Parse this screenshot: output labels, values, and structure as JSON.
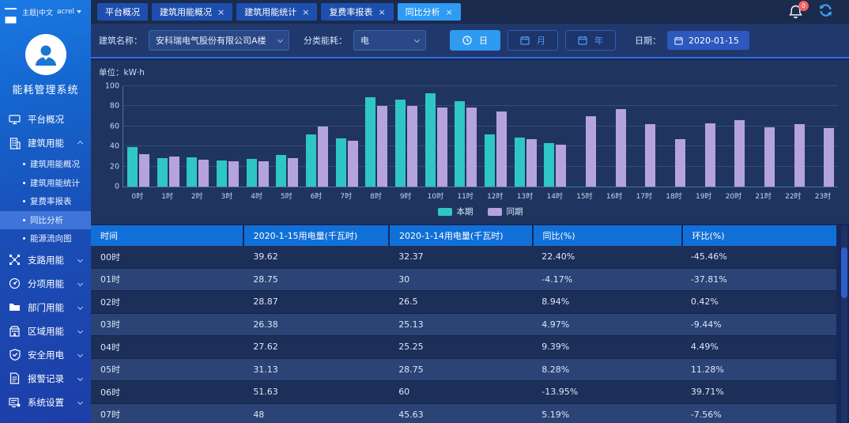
{
  "topbar": {
    "language_label": "主题|中文",
    "user_label": "acrel",
    "tabs": [
      {
        "label": "平台概况",
        "closable": false,
        "active": false
      },
      {
        "label": "建筑用能概况",
        "closable": true,
        "active": false
      },
      {
        "label": "建筑用能统计",
        "closable": true,
        "active": false
      },
      {
        "label": "复费率报表",
        "closable": true,
        "active": false
      },
      {
        "label": "同比分析",
        "closable": true,
        "active": true
      }
    ],
    "notification_badge": "0"
  },
  "sidebar": {
    "app_title": "能耗管理系统",
    "items": [
      {
        "label": "平台概况",
        "icon": "monitor-icon",
        "type": "item"
      },
      {
        "label": "建筑用能",
        "icon": "building-icon",
        "type": "group",
        "expanded": true,
        "children": [
          {
            "label": "建筑用能概况",
            "active": false
          },
          {
            "label": "建筑用能统计",
            "active": false
          },
          {
            "label": "复费率报表",
            "active": false
          },
          {
            "label": "同比分析",
            "active": true
          },
          {
            "label": "能源流向图",
            "active": false
          }
        ]
      },
      {
        "label": "支路用能",
        "icon": "branch-icon",
        "type": "group",
        "expanded": false
      },
      {
        "label": "分项用能",
        "icon": "gauge-icon",
        "type": "group",
        "expanded": false
      },
      {
        "label": "部门用能",
        "icon": "folder-icon",
        "type": "group",
        "expanded": false
      },
      {
        "label": "区域用能",
        "icon": "region-icon",
        "type": "group",
        "expanded": false
      },
      {
        "label": "安全用电",
        "icon": "shield-icon",
        "type": "group",
        "expanded": false
      },
      {
        "label": "报警记录",
        "icon": "report-icon",
        "type": "group",
        "expanded": false
      },
      {
        "label": "系统设置",
        "icon": "settings-icon",
        "type": "group",
        "expanded": false
      }
    ]
  },
  "filters": {
    "building_label": "建筑名称：",
    "building_value": "安科瑞电气股份有限公司A楼",
    "energy_label": "分类能耗：",
    "energy_value": "电",
    "period_buttons": [
      {
        "label": "日",
        "icon": "clock-icon",
        "active": true
      },
      {
        "label": "月",
        "icon": "calendar-icon",
        "active": false
      },
      {
        "label": "年",
        "icon": "calendar-icon",
        "active": false
      }
    ],
    "date_label": "日期：",
    "date_value": "2020-01-15"
  },
  "chart_data": {
    "type": "bar",
    "unit_label": "单位：kW·h",
    "categories": [
      "0时",
      "1时",
      "2时",
      "3时",
      "4时",
      "5时",
      "6时",
      "7时",
      "8时",
      "9时",
      "10时",
      "11时",
      "12时",
      "13时",
      "14时",
      "15时",
      "16时",
      "17时",
      "18时",
      "19时",
      "20时",
      "21时",
      "22时",
      "23时"
    ],
    "series": [
      {
        "name": "本期",
        "color": "#2fc6c6",
        "values": [
          39.62,
          28.75,
          28.87,
          26.38,
          27.62,
          31.13,
          51.63,
          48,
          89,
          87,
          93,
          85,
          52,
          49,
          43,
          null,
          null,
          null,
          null,
          null,
          null,
          null,
          null,
          null
        ]
      },
      {
        "name": "同期",
        "color": "#b5a3de",
        "values": [
          32.37,
          30,
          26.5,
          25.13,
          25.25,
          28.75,
          60,
          45.63,
          80,
          80,
          79,
          79,
          75,
          47,
          42,
          70,
          77,
          62,
          47,
          63,
          66,
          59,
          62,
          58
        ]
      }
    ],
    "ylim": [
      0,
      100
    ],
    "yticks": [
      0,
      20,
      40,
      60,
      80,
      100
    ],
    "legend": [
      "本期",
      "同期"
    ],
    "legend_position": "bottom",
    "grid": true
  },
  "table": {
    "columns": [
      "时间",
      "2020-1-15用电量(千瓦时)",
      "2020-1-14用电量(千瓦时)",
      "同比(%)",
      "环比(%)"
    ],
    "rows": [
      [
        "00时",
        "39.62",
        "32.37",
        "22.40%",
        "-45.46%"
      ],
      [
        "01时",
        "28.75",
        "30",
        "-4.17%",
        "-37.81%"
      ],
      [
        "02时",
        "28.87",
        "26.5",
        "8.94%",
        "0.42%"
      ],
      [
        "03时",
        "26.38",
        "25.13",
        "4.97%",
        "-9.44%"
      ],
      [
        "04时",
        "27.62",
        "25.25",
        "9.39%",
        "4.49%"
      ],
      [
        "05时",
        "31.13",
        "28.75",
        "8.28%",
        "11.28%"
      ],
      [
        "06时",
        "51.63",
        "60",
        "-13.95%",
        "39.71%"
      ],
      [
        "07时",
        "48",
        "45.63",
        "5.19%",
        "-7.56%"
      ]
    ]
  },
  "colors": {
    "accent": "#2e9af0",
    "active_tab": "#2f9bf3",
    "inactive_tab": "#1e4fae",
    "table_header": "#1170d8",
    "series_current": "#2fc6c6",
    "series_previous": "#b5a3de",
    "badge": "#f25f5f"
  }
}
